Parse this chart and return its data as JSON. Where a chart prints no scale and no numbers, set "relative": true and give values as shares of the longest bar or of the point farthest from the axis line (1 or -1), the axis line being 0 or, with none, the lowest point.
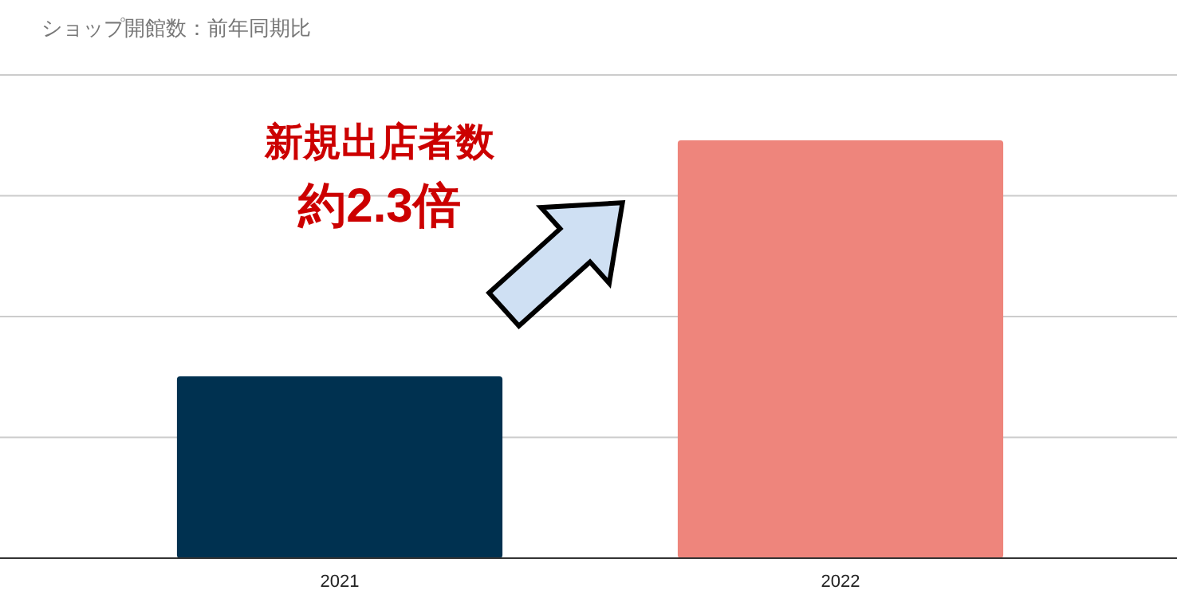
{
  "chart_data": {
    "type": "bar",
    "title": "ショップ開館数：前年同期比",
    "categories": [
      "2021",
      "2022"
    ],
    "relative": true,
    "values": [
      0.435,
      1
    ],
    "colors": [
      "#003150",
      "#ee857c"
    ],
    "grid": "y",
    "annotations": [
      "新規出店者数",
      "約2.3倍"
    ]
  }
}
